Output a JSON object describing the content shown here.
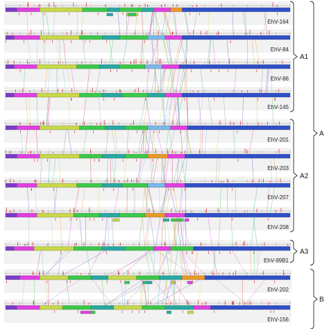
{
  "genomes": [
    {
      "label": "EhV-164"
    },
    {
      "label": "EhV-84"
    },
    {
      "label": "EhV-86"
    },
    {
      "label": "EhV-145"
    },
    {
      "label": "EhV-201"
    },
    {
      "label": "EhV-203"
    },
    {
      "label": "EhV-207"
    },
    {
      "label": "EhV-208"
    },
    {
      "label": "EhV-99B1"
    },
    {
      "label": "EhV-202"
    },
    {
      "label": "EhV-156"
    }
  ],
  "groups": [
    {
      "label": "A1",
      "first": 0,
      "last": 3
    },
    {
      "label": "A2",
      "first": 4,
      "last": 7
    },
    {
      "label": "A3",
      "first": 8,
      "last": 8
    },
    {
      "label": "A",
      "first": 0,
      "last": 8
    },
    {
      "label": "B",
      "first": 9,
      "last": 10
    }
  ],
  "block_colors": {
    "magenta": "#e040e0",
    "yellow_green": "#c8d84a",
    "green": "#3cc84a",
    "teal": "#28a8a0",
    "blue": "#3050c8",
    "purple": "#7a3cc8",
    "orange": "#e89a28",
    "red": "#d82828",
    "light_blue": "#7ab8e8"
  },
  "backbone_color": "#3a55c8",
  "accent_color": "#e02020"
}
